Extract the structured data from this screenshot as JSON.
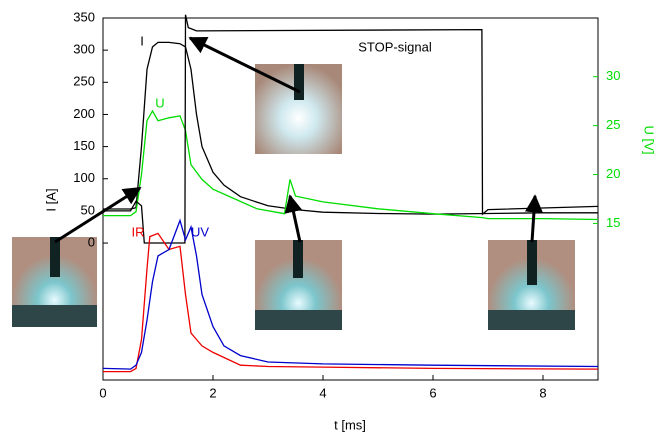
{
  "chart_data": {
    "type": "line",
    "xlabel": "t [ms]",
    "ylabel": "I [A]",
    "y2label": "U [V]",
    "xlim": [
      0,
      9
    ],
    "xticks": [
      0,
      2,
      4,
      6,
      8
    ],
    "ylim": [
      -213,
      350
    ],
    "yticks": [
      0,
      50,
      100,
      150,
      200,
      250,
      300,
      350
    ],
    "y2lim": [
      -1,
      36
    ],
    "y2ticks": [
      15,
      20,
      25,
      30
    ],
    "y2color": "#00dd00",
    "series": [
      {
        "name": "I",
        "color": "#000000",
        "x": [
          0,
          0.5,
          0.6,
          0.7,
          0.8,
          0.9,
          1.0,
          1.2,
          1.4,
          1.5,
          1.6,
          1.7,
          1.8,
          2.0,
          2.2,
          2.5,
          3.0,
          3.5,
          4,
          5,
          6,
          7,
          8,
          9
        ],
        "values": [
          53,
          53,
          55,
          150,
          270,
          305,
          312,
          312,
          310,
          305,
          270,
          200,
          150,
          110,
          90,
          72,
          58,
          52,
          48,
          46,
          45,
          46,
          47,
          47
        ]
      },
      {
        "name": "U",
        "color": "#00dd00",
        "axis": "y2",
        "x": [
          0,
          0.5,
          0.6,
          0.7,
          0.8,
          0.9,
          1.0,
          1.2,
          1.4,
          1.5,
          1.6,
          1.8,
          2.0,
          2.4,
          2.8,
          3.3,
          3.4,
          3.5,
          4,
          5,
          6,
          6.9,
          7,
          8,
          9
        ],
        "values": [
          15.8,
          15.8,
          16.2,
          20,
          25.5,
          26.5,
          25.5,
          25.8,
          26,
          24.5,
          21,
          19.5,
          18.5,
          17.5,
          16.5,
          16,
          19.5,
          17.8,
          17.2,
          16.5,
          16,
          15.6,
          15.5,
          15.5,
          15.4
        ]
      },
      {
        "name": "STOP-signal",
        "color": "#000000",
        "x": [
          0,
          0.5,
          0.6,
          0.7,
          0.75,
          1.49,
          1.5,
          1.55,
          1.7,
          6.89,
          6.9,
          7,
          9
        ],
        "values": [
          50,
          50,
          65,
          58,
          0,
          0,
          355,
          335,
          330,
          332,
          45,
          52,
          57
        ]
      },
      {
        "name": "IR",
        "color": "#ee0000",
        "x": [
          0,
          0.5,
          0.6,
          0.7,
          0.8,
          0.85,
          1.0,
          1.2,
          1.4,
          1.5,
          1.6,
          1.7,
          1.8,
          2.0,
          2.5,
          3,
          4,
          6,
          9
        ],
        "values": [
          -200,
          -200,
          -195,
          -150,
          -40,
          10,
          15,
          -10,
          -5,
          -80,
          -140,
          -150,
          -160,
          -170,
          -190,
          -192,
          -193,
          -195,
          -196
        ]
      },
      {
        "name": "UV",
        "color": "#0000cc",
        "x": [
          0,
          0.5,
          0.6,
          0.7,
          0.8,
          0.9,
          1.0,
          1.2,
          1.4,
          1.5,
          1.6,
          1.7,
          1.8,
          2.0,
          2.2,
          2.5,
          3,
          4,
          6,
          9
        ],
        "values": [
          -195,
          -196,
          -190,
          -170,
          -120,
          -60,
          -20,
          -10,
          35,
          5,
          25,
          -20,
          -80,
          -130,
          -160,
          -175,
          -185,
          -188,
          -190,
          -192
        ]
      }
    ]
  }
}
